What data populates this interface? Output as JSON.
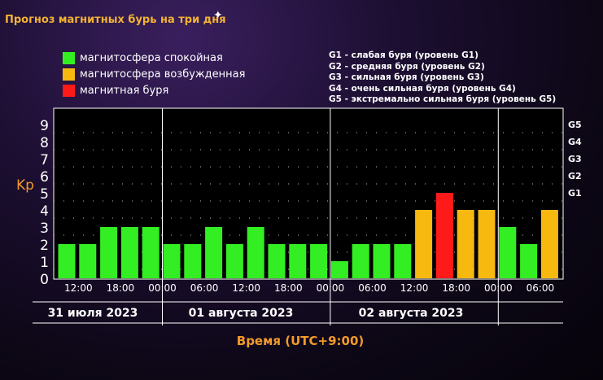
{
  "title": "Прогноз магнитных бурь на три дня",
  "legend": [
    {
      "label": "магнитосфера спокойная",
      "color": "#33ee22"
    },
    {
      "label": "магнитосфера возбужденная",
      "color": "#f7b90f"
    },
    {
      "label": "магнитная буря",
      "color": "#ff1a1a"
    }
  ],
  "g_legend": [
    "G1 - слабая буря (уровень G1)",
    "G2 - средняя буря (уровень G2)",
    "G3 - сильная буря (уровень G3)",
    "G4 - очень сильная буря (уровень G4)",
    "G5 - экстремально сильная буря (уровень G5)"
  ],
  "chart_data": {
    "type": "bar",
    "ylabel": "Kp",
    "xlabel": "Время (UTC+9:00)",
    "ylim": [
      0,
      9
    ],
    "y_ticks": [
      "0",
      "1",
      "2",
      "3",
      "4",
      "5",
      "6",
      "7",
      "8",
      "9"
    ],
    "right_ticks": [
      {
        "label": "G1",
        "value": 5
      },
      {
        "label": "G2",
        "value": 6
      },
      {
        "label": "G3",
        "value": 7
      },
      {
        "label": "G4",
        "value": 8
      },
      {
        "label": "G5",
        "value": 9
      }
    ],
    "x_tick_labels": [
      "12:00",
      "18:00",
      "00:00",
      "06:00",
      "12:00",
      "18:00",
      "00:00",
      "06:00",
      "12:00",
      "18:00",
      "00:00",
      "06:00"
    ],
    "date_labels": [
      "31 июля 2023",
      "01 августа 2023",
      "02 августа 2023"
    ],
    "grid": "dotted",
    "values": [
      2,
      2,
      3,
      3,
      3,
      2,
      2,
      3,
      2,
      3,
      2,
      2,
      2,
      1,
      2,
      2,
      2,
      4,
      5,
      4,
      4,
      3,
      2,
      4
    ],
    "colors": {
      "quiet": "#33ee22",
      "active": "#f7b90f",
      "storm": "#ff1a1a"
    }
  }
}
